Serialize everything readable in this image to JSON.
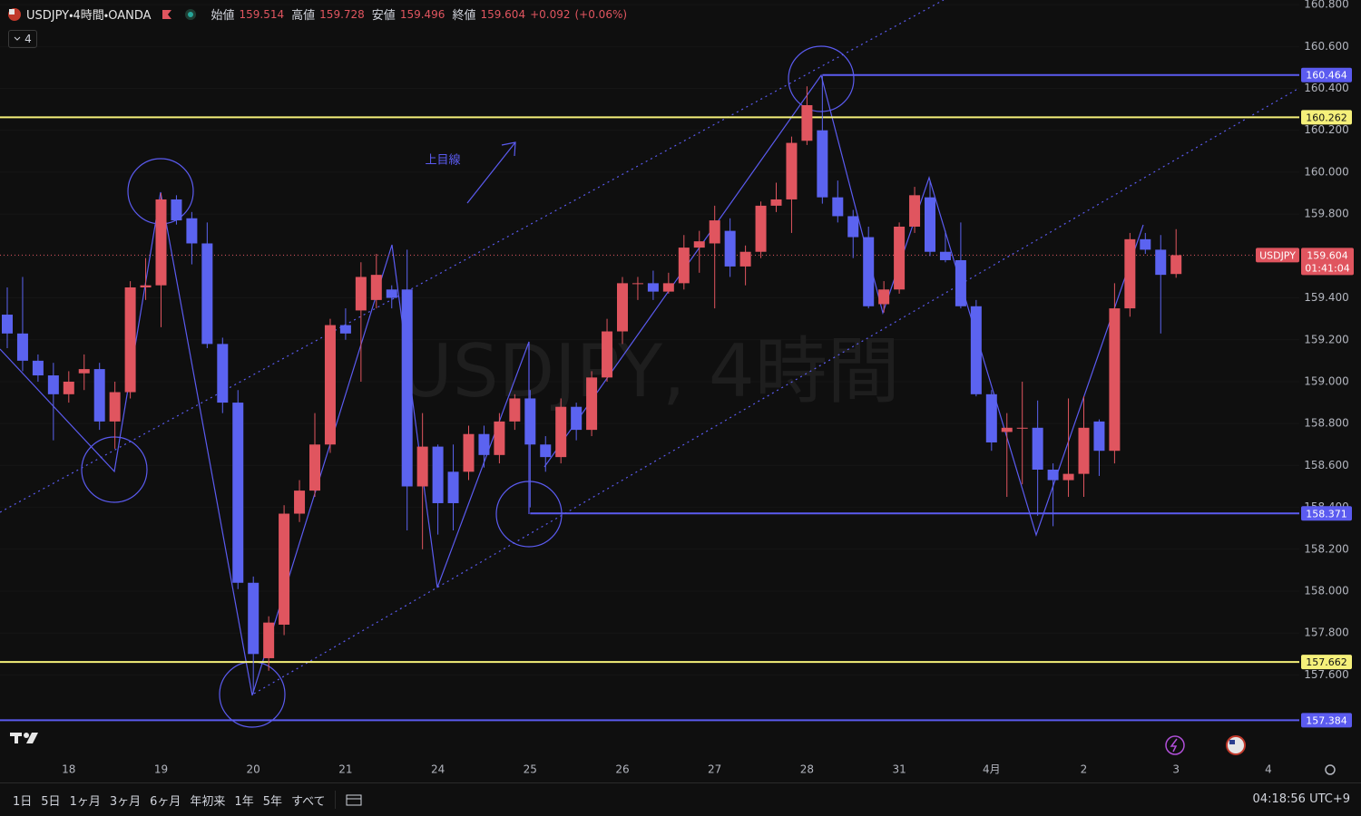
{
  "chart_data": {
    "type": "candlestick",
    "header": {
      "symbol": "USDJPY・4時間・OANDA",
      "ohlc": [
        {
          "name": "始値",
          "value": 159.514
        },
        {
          "name": "高値",
          "value": 159.728
        },
        {
          "name": "安値",
          "value": 159.496
        },
        {
          "name": "終値",
          "value": 159.604
        }
      ],
      "change": {
        "value": 0.092,
        "label": "+0.092"
      },
      "change_pct": {
        "value": 0.06,
        "label": "(+0.06%)"
      }
    },
    "interval": "4",
    "watermark": "USDJPY, 4時間",
    "annotation": "上目線",
    "up_color": "#e0555f",
    "down_color": "#5b63f0",
    "categories": [
      null,
      null,
      null,
      null,
      "18",
      null,
      null,
      null,
      null,
      null,
      "19",
      null,
      null,
      null,
      null,
      null,
      "20",
      null,
      null,
      null,
      null,
      null,
      "21",
      null,
      null,
      null,
      null,
      null,
      "24",
      null,
      null,
      null,
      null,
      null,
      "25",
      null,
      null,
      null,
      null,
      null,
      "26",
      null,
      null,
      null,
      null,
      null,
      "27",
      null,
      null,
      null,
      null,
      null,
      "28",
      null,
      null,
      null,
      null,
      null,
      "31",
      null,
      null,
      null,
      null,
      null,
      "4月",
      null,
      null,
      null,
      null,
      null,
      "2",
      null,
      null,
      null,
      null,
      null,
      "3"
    ],
    "future_categories": [
      null,
      null,
      null,
      null,
      null,
      "4"
    ],
    "open": [
      159.32,
      159.23,
      159.1,
      159.03,
      158.94,
      159.04,
      159.06,
      158.81,
      158.95,
      159.45,
      159.46,
      159.87,
      159.78,
      159.66,
      159.18,
      158.9,
      158.04,
      157.68,
      157.84,
      158.37,
      158.48,
      158.7,
      159.27,
      159.34,
      159.39,
      159.44,
      159.44,
      158.5,
      158.69,
      158.57,
      158.57,
      158.75,
      158.65,
      158.81,
      158.92,
      158.7,
      158.64,
      158.88,
      158.77,
      159.02,
      159.24,
      159.47,
      159.47,
      159.43,
      159.47,
      159.64,
      159.66,
      159.72,
      159.55,
      159.62,
      159.84,
      159.87,
      160.15,
      160.2,
      159.88,
      159.79,
      159.69,
      159.37,
      159.44,
      159.74,
      159.88,
      159.62,
      159.58,
      159.36,
      158.94,
      158.76,
      158.78,
      158.78,
      158.58,
      158.53,
      158.56,
      158.81,
      158.67,
      159.35,
      159.68,
      159.63,
      159.514
    ],
    "high": [
      159.45,
      159.5,
      159.13,
      159.09,
      159.05,
      159.13,
      159.09,
      159.0,
      159.48,
      159.59,
      159.9,
      159.89,
      159.81,
      159.76,
      159.21,
      158.96,
      158.07,
      157.88,
      158.41,
      158.53,
      158.85,
      159.3,
      159.35,
      159.57,
      159.61,
      159.46,
      159.63,
      158.85,
      158.7,
      158.7,
      158.79,
      158.79,
      158.85,
      158.94,
      158.96,
      158.74,
      158.92,
      158.9,
      159.05,
      159.3,
      159.5,
      159.5,
      159.53,
      159.52,
      159.7,
      159.72,
      159.84,
      159.78,
      159.65,
      159.86,
      159.95,
      160.17,
      160.41,
      160.46,
      159.96,
      159.82,
      159.74,
      159.48,
      159.76,
      159.93,
      159.96,
      159.72,
      159.76,
      159.39,
      158.96,
      158.85,
      159.0,
      158.91,
      158.61,
      158.92,
      158.93,
      158.82,
      159.47,
      159.71,
      159.71,
      159.7,
      159.728
    ],
    "low": [
      159.16,
      159.05,
      159.0,
      158.72,
      158.9,
      158.96,
      158.77,
      158.68,
      158.92,
      159.39,
      159.26,
      159.75,
      159.56,
      159.16,
      158.85,
      158.01,
      157.51,
      157.62,
      157.79,
      158.33,
      158.45,
      158.66,
      159.2,
      159.0,
      159.35,
      159.35,
      158.29,
      158.2,
      158.27,
      158.29,
      158.53,
      158.59,
      158.61,
      158.77,
      158.4,
      158.57,
      158.61,
      158.72,
      158.74,
      159.0,
      159.18,
      159.39,
      159.39,
      159.42,
      159.44,
      159.52,
      159.35,
      159.5,
      159.46,
      159.59,
      159.81,
      159.71,
      160.13,
      159.85,
      159.76,
      159.59,
      159.35,
      159.33,
      159.42,
      159.71,
      159.6,
      159.57,
      159.35,
      158.93,
      158.67,
      158.45,
      158.51,
      158.36,
      158.31,
      158.45,
      158.45,
      158.55,
      158.61,
      159.31,
      159.61,
      159.23,
      159.496
    ],
    "close": [
      159.23,
      159.1,
      159.03,
      158.94,
      159.0,
      159.06,
      158.81,
      158.95,
      159.45,
      159.46,
      159.87,
      159.77,
      159.66,
      159.18,
      158.9,
      158.04,
      157.7,
      157.85,
      158.37,
      158.48,
      158.7,
      159.27,
      159.23,
      159.5,
      159.51,
      159.4,
      158.5,
      158.69,
      158.42,
      158.42,
      158.75,
      158.65,
      158.81,
      158.92,
      158.7,
      158.64,
      158.88,
      158.77,
      159.02,
      159.24,
      159.47,
      159.47,
      159.43,
      159.47,
      159.64,
      159.67,
      159.77,
      159.55,
      159.62,
      159.84,
      159.87,
      160.14,
      160.32,
      159.88,
      159.79,
      159.69,
      159.36,
      159.44,
      159.74,
      159.89,
      159.62,
      159.58,
      159.36,
      158.94,
      158.71,
      158.78,
      158.78,
      158.58,
      158.53,
      158.56,
      158.78,
      158.67,
      159.35,
      159.68,
      159.63,
      159.51,
      159.604
    ],
    "ylim": [
      157.208,
      160.822
    ],
    "yticks": [
      {
        "value": 157.6,
        "label": "157.600"
      },
      {
        "value": 157.8,
        "label": "157.800"
      },
      {
        "value": 158.0,
        "label": "158.000"
      },
      {
        "value": 158.2,
        "label": "158.200"
      },
      {
        "value": 158.4,
        "label": "158.400"
      },
      {
        "value": 158.6,
        "label": "158.600"
      },
      {
        "value": 158.8,
        "label": "158.800"
      },
      {
        "value": 159.0,
        "label": "159.000"
      },
      {
        "value": 159.2,
        "label": "159.200"
      },
      {
        "value": 159.4,
        "label": "159.400"
      },
      {
        "value": 159.6,
        "label": "159.600"
      },
      {
        "value": 159.8,
        "label": "159.800"
      },
      {
        "value": 160.0,
        "label": "160.000"
      },
      {
        "value": 160.2,
        "label": "160.200"
      },
      {
        "value": 160.4,
        "label": "160.400"
      },
      {
        "value": 160.6,
        "label": "160.600"
      },
      {
        "value": 160.8,
        "label": "160.800"
      }
    ],
    "grid": true,
    "levels": [
      {
        "price": 160.464,
        "color": "#5b5bf0",
        "text_color": "#ffffff"
      },
      {
        "price": 160.262,
        "color": "#f5f07a",
        "text_color": "#131313"
      },
      {
        "price": 158.371,
        "color": "#5b5bf0",
        "text_color": "#ffffff"
      },
      {
        "price": 157.662,
        "color": "#f5f07a",
        "text_color": "#131313"
      },
      {
        "price": 157.384,
        "color": "#5b5bf0",
        "text_color": "#ffffff"
      }
    ],
    "symbol_label": "USDJPY",
    "last_price": 159.604,
    "countdown": "01:41:04"
  },
  "toolbar": {
    "ranges": [
      "1日",
      "5日",
      "1ヶ月",
      "3ヶ月",
      "6ヶ月",
      "年初来",
      "1年",
      "5年",
      "すべて"
    ],
    "clock": "04:18:56 UTC+9"
  }
}
